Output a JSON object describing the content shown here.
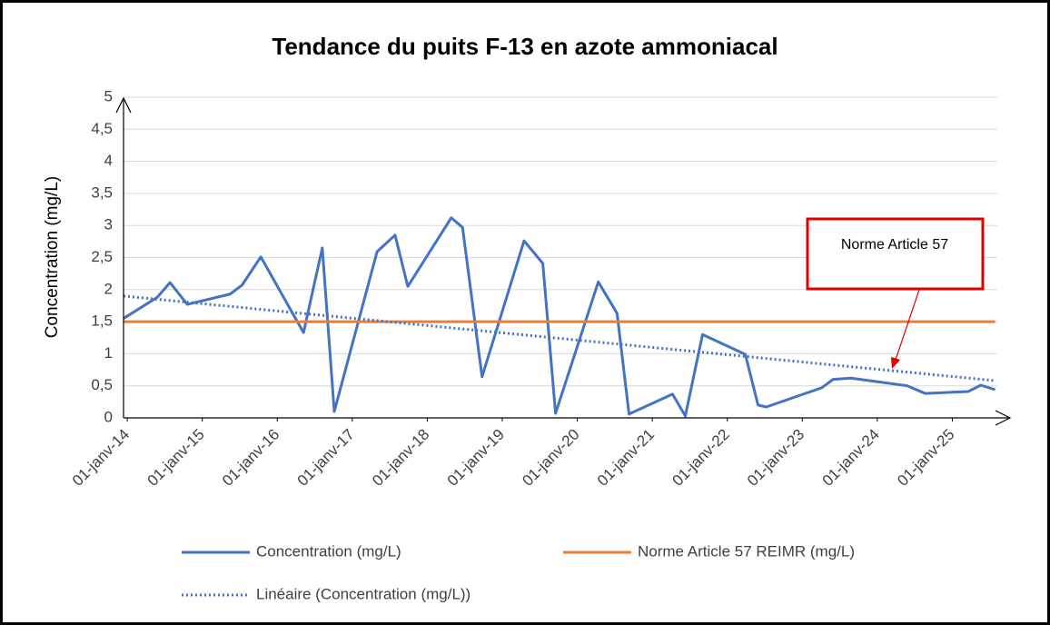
{
  "chart_data": {
    "type": "line",
    "title": "Tendance du puits F-13 en azote ammoniacal",
    "ylabel": "Concentration (mg/L)",
    "annotation": "Norme Article 57",
    "xlim": [
      2013.95,
      2025.6
    ],
    "xticks": [
      {
        "value": 2014,
        "label": "01-janv-14"
      },
      {
        "value": 2015,
        "label": "01-janv-15"
      },
      {
        "value": 2016,
        "label": "01-janv-16"
      },
      {
        "value": 2017,
        "label": "01-janv-17"
      },
      {
        "value": 2018,
        "label": "01-janv-18"
      },
      {
        "value": 2019,
        "label": "01-janv-19"
      },
      {
        "value": 2020,
        "label": "01-janv-20"
      },
      {
        "value": 2021,
        "label": "01-janv-21"
      },
      {
        "value": 2022,
        "label": "01-janv-22"
      },
      {
        "value": 2023,
        "label": "01-janv-23"
      },
      {
        "value": 2024,
        "label": "01-janv-24"
      },
      {
        "value": 2025,
        "label": "01-janv-25"
      }
    ],
    "ylim": [
      0,
      5
    ],
    "yticks": [
      0,
      {
        "value": 0.5,
        "label": "0,5"
      },
      1,
      {
        "value": 1.5,
        "label": "1,5"
      },
      2,
      {
        "value": 2.5,
        "label": "2,5"
      },
      3,
      {
        "value": 3.5,
        "label": "3,5"
      },
      4,
      {
        "value": 4.5,
        "label": "4,5"
      },
      5
    ],
    "grid": true,
    "series": [
      {
        "name": "Concentration (mg/L)",
        "color": "#4472c4",
        "dash": "solid",
        "x": [
          2013.95,
          2014.4,
          2014.57,
          2014.8,
          2015.37,
          2015.53,
          2015.78,
          2016.35,
          2016.6,
          2016.76,
          2017.33,
          2017.57,
          2017.74,
          2018.32,
          2018.47,
          2018.73,
          2019.29,
          2019.54,
          2019.71,
          2020.28,
          2020.53,
          2020.69,
          2021.27,
          2021.44,
          2021.67,
          2022.24,
          2022.41,
          2022.52,
          2023.26,
          2023.41,
          2023.65,
          2024.4,
          2024.64,
          2025.21,
          2025.38,
          2025.57
        ],
        "values": [
          1.55,
          1.88,
          2.11,
          1.77,
          1.93,
          2.07,
          2.51,
          1.33,
          2.65,
          0.1,
          2.59,
          2.85,
          2.05,
          3.12,
          2.97,
          0.64,
          2.76,
          2.41,
          0.07,
          2.12,
          1.63,
          0.06,
          0.37,
          0.03,
          1.3,
          0.99,
          0.2,
          0.17,
          0.47,
          0.6,
          0.62,
          0.5,
          0.38,
          0.41,
          0.51,
          0.44
        ]
      },
      {
        "name": "Norme Article 57 REIMR (mg/L)",
        "color": "#ed7d31",
        "dash": "solid",
        "x": [
          2013.95,
          2025.57
        ],
        "values": [
          1.5,
          1.5
        ]
      },
      {
        "name": "Linéaire (Concentration (mg/L))",
        "color": "#4472c4",
        "dash": "dotted",
        "x": [
          2013.95,
          2025.57
        ],
        "values": [
          1.9,
          0.58
        ]
      }
    ]
  }
}
